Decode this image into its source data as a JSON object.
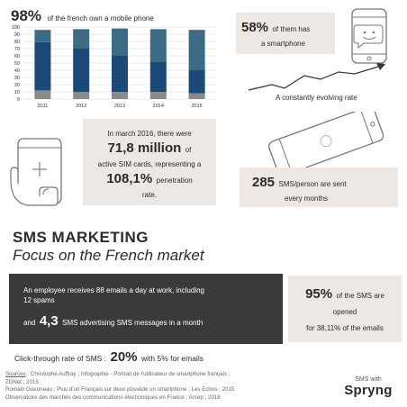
{
  "stat_98": {
    "value": "98%",
    "text": "of the french own a mobile phone"
  },
  "chart_data": {
    "type": "bar",
    "categories": [
      "2011",
      "2012",
      "2013",
      "2014",
      "2015"
    ],
    "series": [
      {
        "values": [
          12,
          10,
          10,
          10,
          8
        ]
      },
      {
        "values": [
          67,
          60,
          50,
          42,
          32
        ]
      },
      {
        "values": [
          17,
          27,
          38,
          45,
          56
        ]
      }
    ],
    "ylim": [
      0,
      100
    ],
    "yticks": [
      "0",
      "10",
      "20",
      "30",
      "40",
      "50",
      "60",
      "70",
      "80",
      "90",
      "100"
    ],
    "grid": true,
    "colors": [
      "#8a8a8a",
      "#1b4a78",
      "#3c6b86"
    ]
  },
  "stat_58": {
    "value": "58%",
    "text_a": "of them has",
    "text_b": "a smartphone"
  },
  "trend": {
    "caption": "A constantly evolving rate"
  },
  "sim_box": {
    "line1": "In march 2016, there were",
    "big1": "71,8 million",
    "of": "of",
    "line2": "active SIM cards, representing a",
    "big2": "108,1%",
    "penetration": "penetration",
    "rate": "rate."
  },
  "sms_box": {
    "value": "285",
    "text_a": "SMS/person are sent",
    "text_b": "every months"
  },
  "section": {
    "title": "SMS MARKETING",
    "subtitle": "Focus on the French market"
  },
  "dark_box": {
    "line1": "An employee receives 88 emails a day at work, including",
    "line2": "12 spams",
    "and": "and",
    "big": "4,3",
    "line3": "SMS advertising SMS messages in a month"
  },
  "open_box": {
    "value": "95%",
    "text_a": "of the SMS are",
    "text_b": "opened",
    "text_c": "for 38,11% of the emails"
  },
  "ctr": {
    "text_a": "Click-through rate of SMS :",
    "value": "20%",
    "text_b": "with 5% for emails"
  },
  "sources": {
    "label": "Sources",
    "line1": " : Christophe Auffray ; Infographie - Portrait de l'utilisateur de smartphone français ;",
    "line2": "ZDNet ; 2015",
    "line3": "Romain Gueuneau ; Plus d'un Français sur deux possède un smartphone ; Les Echos ; 2015",
    "line4": "Observatoire des marchés des communications électroniques en France  ; Arcep  ; 2016"
  },
  "brand": {
    "small": "SMS with",
    "name": "Spryng"
  },
  "colors": {
    "dark_box": "#3a3a3a",
    "light_box": "#ede8e4",
    "bar_dark": "#1b4a78",
    "bar_mid": "#3c6b86",
    "bar_base": "#8a8a8a"
  }
}
